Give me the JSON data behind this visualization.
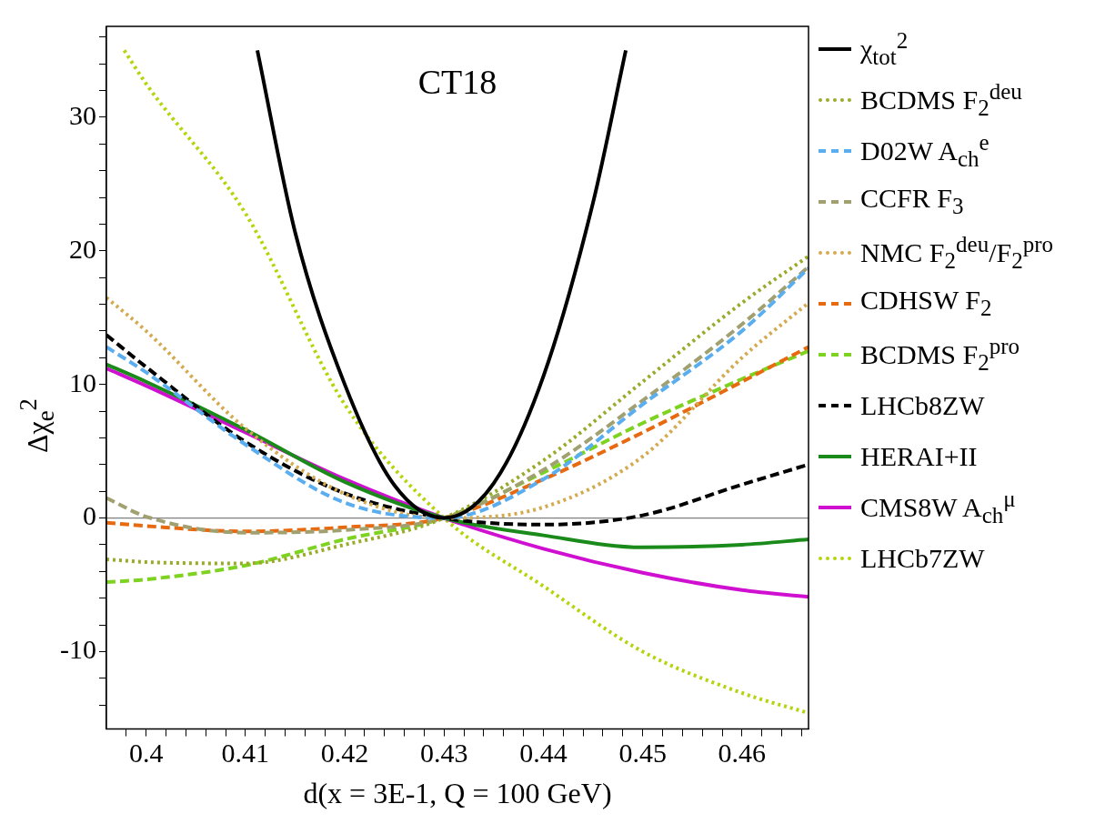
{
  "chart_data": {
    "type": "line",
    "xlabel": "d(x = 3E-1, Q = 100 GeV)",
    "ylabel": "Δχ$_{e}$$^{2}$",
    "annotations": [
      "CT18"
    ],
    "legend": "right",
    "xlim": [
      0.396,
      0.4667
    ],
    "ylim": [
      -15.8,
      36.8
    ],
    "xticks": [
      0.4,
      0.41,
      0.42,
      0.43,
      0.44,
      0.45,
      0.46,
      {
        "value": 0.398,
        "label": null
      },
      {
        "value": 0.402,
        "label": null
      },
      {
        "value": 0.404,
        "label": null
      },
      {
        "value": 0.406,
        "label": null
      },
      {
        "value": 0.408,
        "label": null
      },
      {
        "value": 0.412,
        "label": null
      },
      {
        "value": 0.414,
        "label": null
      },
      {
        "value": 0.416,
        "label": null
      },
      {
        "value": 0.418,
        "label": null
      },
      {
        "value": 0.422,
        "label": null
      },
      {
        "value": 0.424,
        "label": null
      },
      {
        "value": 0.426,
        "label": null
      },
      {
        "value": 0.428,
        "label": null
      },
      {
        "value": 0.432,
        "label": null
      },
      {
        "value": 0.434,
        "label": null
      },
      {
        "value": 0.436,
        "label": null
      },
      {
        "value": 0.438,
        "label": null
      },
      {
        "value": 0.442,
        "label": null
      },
      {
        "value": 0.444,
        "label": null
      },
      {
        "value": 0.446,
        "label": null
      },
      {
        "value": 0.448,
        "label": null
      },
      {
        "value": 0.452,
        "label": null
      },
      {
        "value": 0.454,
        "label": null
      },
      {
        "value": 0.456,
        "label": null
      },
      {
        "value": 0.458,
        "label": null
      },
      {
        "value": 0.462,
        "label": null
      },
      {
        "value": 0.464,
        "label": null
      },
      {
        "value": 0.466,
        "label": null
      }
    ],
    "yticks": [
      -10,
      0,
      10,
      20,
      30,
      {
        "value": -14,
        "label": null
      },
      {
        "value": -12,
        "label": null
      },
      {
        "value": -8,
        "label": null
      },
      {
        "value": -6,
        "label": null
      },
      {
        "value": -4,
        "label": null
      },
      {
        "value": -2,
        "label": null
      },
      {
        "value": 2,
        "label": null
      },
      {
        "value": 4,
        "label": null
      },
      {
        "value": 6,
        "label": null
      },
      {
        "value": 8,
        "label": null
      },
      {
        "value": 12,
        "label": null
      },
      {
        "value": 14,
        "label": null
      },
      {
        "value": 16,
        "label": null
      },
      {
        "value": 18,
        "label": null
      },
      {
        "value": 22,
        "label": null
      },
      {
        "value": 24,
        "label": null
      },
      {
        "value": 26,
        "label": null
      },
      {
        "value": 28,
        "label": null
      },
      {
        "value": 32,
        "label": null
      },
      {
        "value": 34,
        "label": null
      },
      {
        "value": 36,
        "label": null
      }
    ],
    "ref_lines": [
      {
        "axis": "y",
        "value": 0,
        "color": "#808080",
        "line_style": "solid"
      }
    ],
    "x": [
      0.396,
      0.4,
      0.41,
      0.42,
      0.43,
      0.44,
      0.45,
      0.46,
      0.4667
    ],
    "series": [
      {
        "name": "χ$_{tot}$$^{2}$",
        "color": "#000000",
        "line_style": "solid",
        "x": [
          0.4112,
          0.415,
          0.42,
          0.425,
          0.43,
          0.435,
          0.44,
          0.445,
          0.4483
        ],
        "values": [
          35,
          21.4,
          10.0,
          2.45,
          0,
          2.6,
          10.6,
          23.6,
          35
        ]
      },
      {
        "name": "BCDMS F$_{2}$$^{deu}$",
        "color": "#9aaa2a",
        "line_style": "dotted",
        "values": [
          -3.1,
          -3.3,
          -3.4,
          -2.0,
          0,
          4.3,
          10.2,
          16.1,
          19.6
        ]
      },
      {
        "name": "D02W A$_{ch}$$^{e}$",
        "color": "#5aaef0",
        "line_style": "dashed",
        "values": [
          12.8,
          10.9,
          5.5,
          1.15,
          0,
          2.9,
          8.5,
          14.0,
          18.7
        ]
      },
      {
        "name": "CCFR F$_{3}$",
        "color": "#a0a070",
        "line_style": "dashed",
        "values": [
          1.5,
          0.1,
          -1.1,
          -0.9,
          0,
          3.6,
          8.8,
          14.5,
          18.8
        ]
      },
      {
        "name": "NMC F$_{2}$$^{deu}$/F$_{2}$$^{pro}$",
        "color": "#d4aa50",
        "line_style": "dotted",
        "values": [
          16.5,
          14.0,
          6.7,
          1.8,
          0,
          0.8,
          4.6,
          12.0,
          16.1
        ]
      },
      {
        "name": "CDHSW F$_{2}$",
        "color": "#e86a10",
        "line_style": "dashed",
        "values": [
          -0.35,
          -0.6,
          -1.0,
          -0.7,
          0,
          2.9,
          6.4,
          10.2,
          12.8
        ]
      },
      {
        "name": "BCDMS F$_{2}$$^{pro}$",
        "color": "#7ed320",
        "line_style": "dashed",
        "values": [
          -4.8,
          -4.6,
          -3.55,
          -1.6,
          0,
          3.4,
          7.1,
          10.4,
          12.5
        ]
      },
      {
        "name": "LHCb8ZW",
        "color": "#000000",
        "line_style": "dashed",
        "values": [
          13.7,
          11.3,
          5.7,
          1.85,
          0,
          -0.5,
          0.2,
          2.5,
          4.0
        ]
      },
      {
        "name": "HERAI+II",
        "color": "#1a8a1a",
        "line_style": "solid",
        "values": [
          11.5,
          10.2,
          6.6,
          2.7,
          0,
          -1.3,
          -2.2,
          -2.0,
          -1.6
        ]
      },
      {
        "name": "CMS8W A$_{ch}$$^{μ}$",
        "color": "#d010d0",
        "line_style": "solid",
        "values": [
          11.2,
          9.9,
          6.4,
          2.9,
          0,
          -2.3,
          -4.1,
          -5.4,
          -5.9
        ]
      },
      {
        "name": "LHCb7ZW",
        "color": "#b5d40c",
        "line_style": "dotted",
        "x": [
          0.3978,
          0.4,
          0.41,
          0.42,
          0.43,
          0.44,
          0.45,
          0.46,
          0.4667
        ],
        "values": [
          35,
          32.5,
          22.8,
          8.5,
          0,
          -5.1,
          -10.0,
          -13.1,
          -14.6
        ]
      }
    ]
  }
}
